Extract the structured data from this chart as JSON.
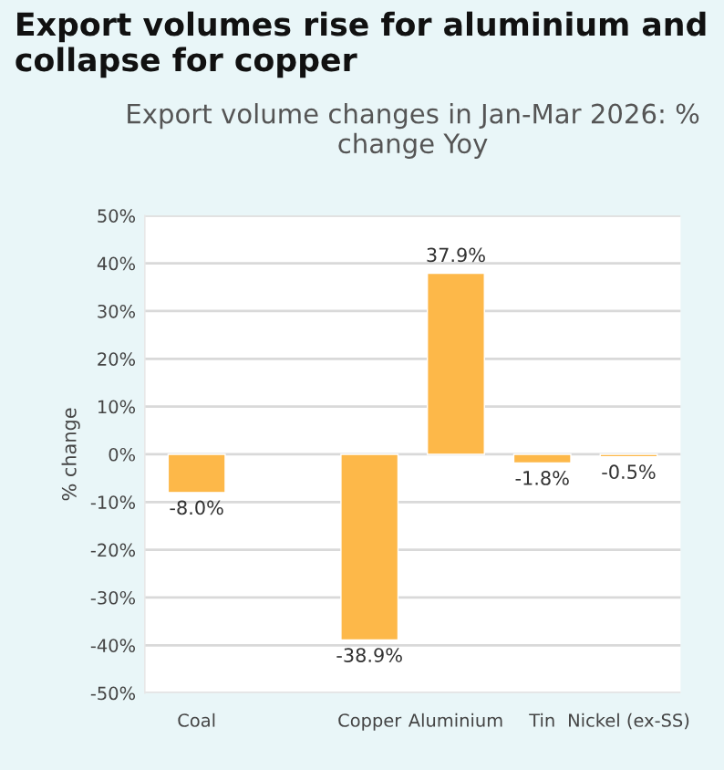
{
  "chart_data": {
    "type": "bar",
    "title": "Export volumes rise for aluminium and collapse for copper",
    "subtitle": "Export volume changes in Jan-Mar 2026: % change Yoy",
    "ylabel": "% change",
    "categories": [
      "Coal",
      null,
      "Copper",
      "Aluminium",
      "Tin",
      "Nickel (ex-SS)"
    ],
    "values": [
      -8.0,
      null,
      -38.9,
      37.9,
      -1.8,
      -0.5
    ],
    "color": "#fdb849",
    "value_labels": [
      "-8.0%",
      null,
      "-38.9%",
      "37.9%",
      "-1.8%",
      "-0.5%"
    ],
    "ylim": [
      -50,
      50
    ],
    "yticks": [
      {
        "value": -50,
        "label": "-50%"
      },
      {
        "value": -40,
        "label": "-40%"
      },
      {
        "value": -30,
        "label": "-30%"
      },
      {
        "value": -20,
        "label": "-20%"
      },
      {
        "value": -10,
        "label": "-10%"
      },
      {
        "value": 0,
        "label": "0%"
      },
      {
        "value": 10,
        "label": "10%"
      },
      {
        "value": 20,
        "label": "20%"
      },
      {
        "value": 30,
        "label": "30%"
      },
      {
        "value": 40,
        "label": "40%"
      },
      {
        "value": 50,
        "label": "50%"
      }
    ],
    "grid": "y",
    "legend": false
  }
}
